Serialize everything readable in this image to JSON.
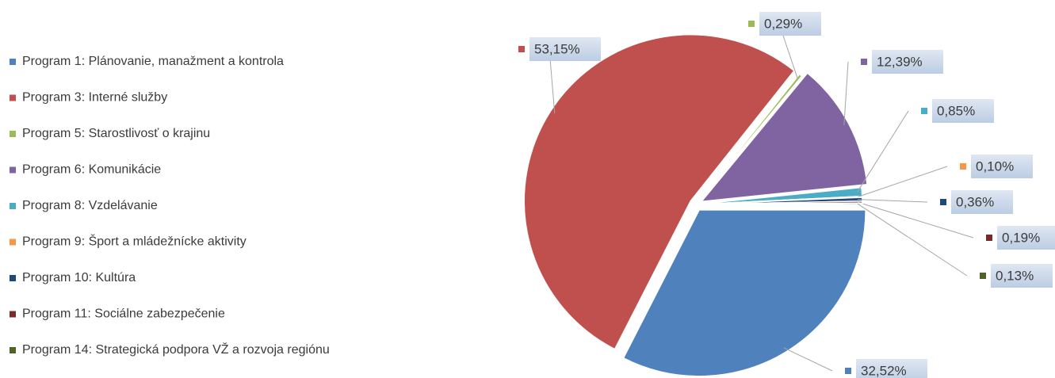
{
  "chart_data": {
    "type": "pie",
    "categories": [
      "Program 1: Plánovanie, manažment  a kontrola",
      "Program 3: Interné služby",
      "Program 5: Starostlivosť o krajinu",
      "Program 6: Komunikácie",
      "Program 8: Vzdelávanie",
      "Program 9: Šport a mládežnícke aktivity",
      "Program 10: Kultúra",
      "Program 11: Sociálne zabezpečenie",
      "Program 14: Strategická podpora VŽ a rozvoja regiónu"
    ],
    "values": [
      32.52,
      53.15,
      0.29,
      12.39,
      0.85,
      0.1,
      0.36,
      0.19,
      0.13
    ],
    "value_labels": [
      "32,52%",
      "53,15%",
      "0,29%",
      "12,39%",
      "0,85%",
      "0,10%",
      "0,36%",
      "0,19%",
      "0,13%"
    ],
    "colors": [
      "#4f81bd",
      "#c0504d",
      "#9bbb59",
      "#8064a2",
      "#4bacc6",
      "#f79646",
      "#1f497d",
      "#772c2a",
      "#4f6228"
    ],
    "legend": "left"
  }
}
